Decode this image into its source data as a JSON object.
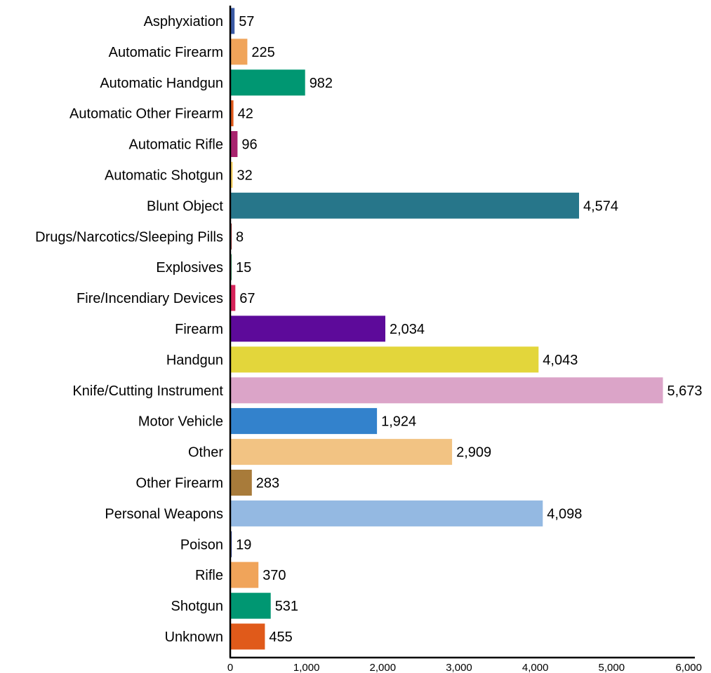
{
  "chart_data": {
    "type": "bar",
    "orientation": "horizontal",
    "title": "",
    "xlabel": "",
    "ylabel": "",
    "xlim": [
      0,
      6000
    ],
    "xticks": [
      0,
      1000,
      2000,
      3000,
      4000,
      5000,
      6000
    ],
    "xtick_labels": [
      "0",
      "1,000",
      "2,000",
      "3,000",
      "4,000",
      "5,000",
      "6,000"
    ],
    "grid": false,
    "legend": "none",
    "categories": [
      "Asphyxiation",
      "Automatic Firearm",
      "Automatic Handgun",
      "Automatic Other Firearm",
      "Automatic Rifle",
      "Automatic Shotgun",
      "Blunt Object",
      "Drugs/Narcotics/Sleeping Pills",
      "Explosives",
      "Fire/Incendiary Devices",
      "Firearm",
      "Handgun",
      "Knife/Cutting Instrument",
      "Motor Vehicle",
      "Other",
      "Other Firearm",
      "Personal Weapons",
      "Poison",
      "Rifle",
      "Shotgun",
      "Unknown"
    ],
    "values": [
      57,
      225,
      982,
      42,
      96,
      32,
      4574,
      8,
      15,
      67,
      2034,
      4043,
      5673,
      1924,
      2909,
      283,
      4098,
      19,
      370,
      531,
      455
    ],
    "value_labels": [
      "57",
      "225",
      "982",
      "42",
      "96",
      "32",
      "4,574",
      "8",
      "15",
      "67",
      "2,034",
      "4,043",
      "5,673",
      "1,924",
      "2,909",
      "283",
      "4,098",
      "19",
      "370",
      "531",
      "455"
    ],
    "colors": [
      "#3b5ba5",
      "#f0a45a",
      "#009772",
      "#e05a1a",
      "#a8236e",
      "#f7d160",
      "#27768a",
      "#8b1a1a",
      "#2e8b57",
      "#d6245a",
      "#5d0a9a",
      "#e3d63b",
      "#dba4c8",
      "#3382cc",
      "#f2c383",
      "#a87b3a",
      "#94b9e2",
      "#2a3e8a",
      "#f0a45a",
      "#009772",
      "#e05a1a"
    ]
  }
}
